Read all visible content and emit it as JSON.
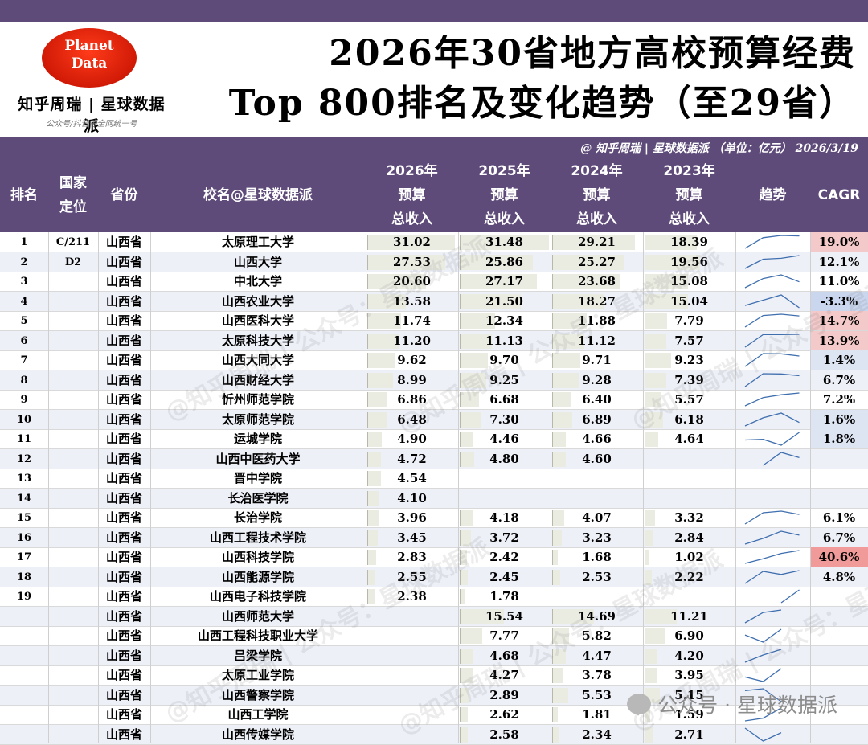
{
  "header": {
    "logo_line1": "Planet",
    "logo_line2": "Data",
    "brand": "知乎周瑞 | 星球数据派",
    "slogan": "公众号/抖音等全网统一号",
    "title_line1": "2026年30省地方高校预算经费",
    "title_line2": "Top 800排名及变化趋势（至29省）",
    "credit": "@ 知乎周瑞 | 星球数据派 （单位：亿元） 2026/3/19"
  },
  "columns": {
    "rank": "排名",
    "level": "国家\n定位",
    "province": "省份",
    "name": "校名@星球数据派",
    "y2026": "2026年\n预算\n总收入",
    "y2025": "2025年\n预算\n总收入",
    "y2024": "2024年\n预算\n总收入",
    "y2023": "2023年\n预算\n总收入",
    "trend": "趋势",
    "cagr": "CAGR"
  },
  "colors": {
    "header_bg": "#5e4b7a",
    "cagr_high": "#f4c9c9",
    "cagr_max": "#f19a9a",
    "cagr_low": "#dde4f2",
    "cagr_neg": "#c9d6ee",
    "spark": "#3f6fae"
  },
  "rows": [
    {
      "rank": "1",
      "level": "C/211",
      "province": "山西省",
      "name": "太原理工大学",
      "y2026": "31.02",
      "y2025": "31.48",
      "y2024": "29.21",
      "y2023": "18.39",
      "cagr": "19.0%",
      "cagr_tone": "high"
    },
    {
      "rank": "2",
      "level": "D2",
      "province": "山西省",
      "name": "山西大学",
      "y2026": "27.53",
      "y2025": "25.86",
      "y2024": "25.27",
      "y2023": "19.56",
      "cagr": "12.1%",
      "cagr_tone": "none"
    },
    {
      "rank": "3",
      "level": "",
      "province": "山西省",
      "name": "中北大学",
      "y2026": "20.60",
      "y2025": "27.17",
      "y2024": "23.68",
      "y2023": "15.08",
      "cagr": "11.0%",
      "cagr_tone": "none"
    },
    {
      "rank": "4",
      "level": "",
      "province": "山西省",
      "name": "山西农业大学",
      "y2026": "13.58",
      "y2025": "21.50",
      "y2024": "18.27",
      "y2023": "15.04",
      "cagr": "-3.3%",
      "cagr_tone": "neg"
    },
    {
      "rank": "5",
      "level": "",
      "province": "山西省",
      "name": "山西医科大学",
      "y2026": "11.74",
      "y2025": "12.34",
      "y2024": "11.88",
      "y2023": "7.79",
      "cagr": "14.7%",
      "cagr_tone": "high"
    },
    {
      "rank": "6",
      "level": "",
      "province": "山西省",
      "name": "太原科技大学",
      "y2026": "11.20",
      "y2025": "11.13",
      "y2024": "11.12",
      "y2023": "7.57",
      "cagr": "13.9%",
      "cagr_tone": "high"
    },
    {
      "rank": "7",
      "level": "",
      "province": "山西省",
      "name": "山西大同大学",
      "y2026": "9.62",
      "y2025": "9.70",
      "y2024": "9.71",
      "y2023": "9.23",
      "cagr": "1.4%",
      "cagr_tone": "low"
    },
    {
      "rank": "8",
      "level": "",
      "province": "山西省",
      "name": "山西财经大学",
      "y2026": "8.99",
      "y2025": "9.25",
      "y2024": "9.28",
      "y2023": "7.39",
      "cagr": "6.7%",
      "cagr_tone": "none"
    },
    {
      "rank": "9",
      "level": "",
      "province": "山西省",
      "name": "忻州师范学院",
      "y2026": "6.86",
      "y2025": "6.68",
      "y2024": "6.40",
      "y2023": "5.57",
      "cagr": "7.2%",
      "cagr_tone": "none"
    },
    {
      "rank": "10",
      "level": "",
      "province": "山西省",
      "name": "太原师范学院",
      "y2026": "6.48",
      "y2025": "7.30",
      "y2024": "6.89",
      "y2023": "6.18",
      "cagr": "1.6%",
      "cagr_tone": "low"
    },
    {
      "rank": "11",
      "level": "",
      "province": "山西省",
      "name": "运城学院",
      "y2026": "4.90",
      "y2025": "4.46",
      "y2024": "4.66",
      "y2023": "4.64",
      "cagr": "1.8%",
      "cagr_tone": "low"
    },
    {
      "rank": "12",
      "level": "",
      "province": "山西省",
      "name": "山西中医药大学",
      "y2026": "4.72",
      "y2025": "4.80",
      "y2024": "4.60",
      "y2023": "",
      "cagr": "",
      "cagr_tone": "none"
    },
    {
      "rank": "13",
      "level": "",
      "province": "山西省",
      "name": "晋中学院",
      "y2026": "4.54",
      "y2025": "",
      "y2024": "",
      "y2023": "",
      "cagr": "",
      "cagr_tone": "none"
    },
    {
      "rank": "14",
      "level": "",
      "province": "山西省",
      "name": "长治医学院",
      "y2026": "4.10",
      "y2025": "",
      "y2024": "",
      "y2023": "",
      "cagr": "",
      "cagr_tone": "none"
    },
    {
      "rank": "15",
      "level": "",
      "province": "山西省",
      "name": "长治学院",
      "y2026": "3.96",
      "y2025": "4.18",
      "y2024": "4.07",
      "y2023": "3.32",
      "cagr": "6.1%",
      "cagr_tone": "none"
    },
    {
      "rank": "16",
      "level": "",
      "province": "山西省",
      "name": "山西工程技术学院",
      "y2026": "3.45",
      "y2025": "3.72",
      "y2024": "3.23",
      "y2023": "2.84",
      "cagr": "6.7%",
      "cagr_tone": "none"
    },
    {
      "rank": "17",
      "level": "",
      "province": "山西省",
      "name": "山西科技学院",
      "y2026": "2.83",
      "y2025": "2.42",
      "y2024": "1.68",
      "y2023": "1.02",
      "cagr": "40.6%",
      "cagr_tone": "max"
    },
    {
      "rank": "18",
      "level": "",
      "province": "山西省",
      "name": "山西能源学院",
      "y2026": "2.55",
      "y2025": "2.45",
      "y2024": "2.53",
      "y2023": "2.22",
      "cagr": "4.8%",
      "cagr_tone": "none"
    },
    {
      "rank": "19",
      "level": "",
      "province": "山西省",
      "name": "山西电子科技学院",
      "y2026": "2.38",
      "y2025": "1.78",
      "y2024": "",
      "y2023": "",
      "cagr": "",
      "cagr_tone": "none"
    },
    {
      "rank": "",
      "level": "",
      "province": "山西省",
      "name": "山西师范大学",
      "y2026": "",
      "y2025": "15.54",
      "y2024": "14.69",
      "y2023": "11.21",
      "cagr": "",
      "cagr_tone": "none"
    },
    {
      "rank": "",
      "level": "",
      "province": "山西省",
      "name": "山西工程科技职业大学",
      "y2026": "",
      "y2025": "7.77",
      "y2024": "5.82",
      "y2023": "6.90",
      "cagr": "",
      "cagr_tone": "none"
    },
    {
      "rank": "",
      "level": "",
      "province": "山西省",
      "name": "吕梁学院",
      "y2026": "",
      "y2025": "4.68",
      "y2024": "4.47",
      "y2023": "4.20",
      "cagr": "",
      "cagr_tone": "none"
    },
    {
      "rank": "",
      "level": "",
      "province": "山西省",
      "name": "太原工业学院",
      "y2026": "",
      "y2025": "4.27",
      "y2024": "3.78",
      "y2023": "3.95",
      "cagr": "",
      "cagr_tone": "none"
    },
    {
      "rank": "",
      "level": "",
      "province": "山西省",
      "name": "山西警察学院",
      "y2026": "",
      "y2025": "2.89",
      "y2024": "5.53",
      "y2023": "5.15",
      "cagr": "",
      "cagr_tone": "none"
    },
    {
      "rank": "",
      "level": "",
      "province": "山西省",
      "name": "山西工学院",
      "y2026": "",
      "y2025": "2.62",
      "y2024": "1.81",
      "y2023": "1.59",
      "cagr": "",
      "cagr_tone": "none"
    },
    {
      "rank": "",
      "level": "",
      "province": "山西省",
      "name": "山西传媒学院",
      "y2026": "",
      "y2025": "2.58",
      "y2024": "2.34",
      "y2023": "2.71",
      "cagr": "",
      "cagr_tone": "none"
    }
  ],
  "watermark": {
    "overlay": "@知乎周瑞 | 公众号：星球数据派",
    "footer": "公众号 · 星球数据派"
  }
}
